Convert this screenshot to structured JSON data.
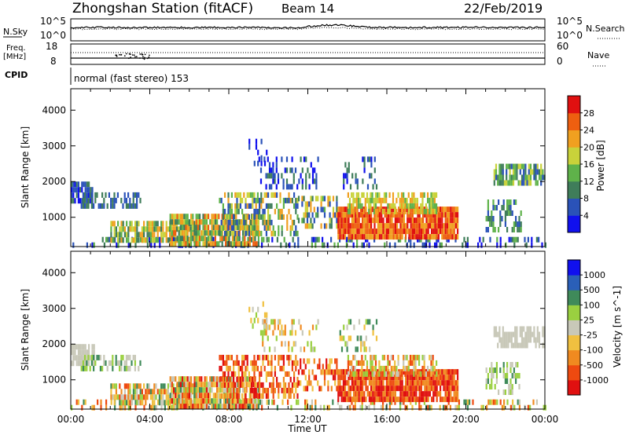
{
  "header": {
    "station": "Zhongshan Station (fitACF)",
    "beam": "Beam 14",
    "date": "22/Feb/2019"
  },
  "strip_labels": {
    "nsky": "N.Sky",
    "nsky_top": "10^5",
    "nsky_bottom": "10^0",
    "nsearch": "N.Search",
    "nsearch_top": "10^5",
    "nsearch_bottom": "10^0",
    "freq_line1": "Freq.",
    "freq_line2": "[MHz]",
    "freq_top": "18",
    "freq_bottom": "8",
    "nave": "Nave",
    "nave_top": "60",
    "nave_bottom": "0",
    "cpid": "CPID",
    "cpid_value": "normal (fast stereo) 153"
  },
  "colors": {
    "power": [
      "#1010ee",
      "#2a52b8",
      "#3f7d5a",
      "#5fb24a",
      "#c9d23a",
      "#f0a020",
      "#ee5f10",
      "#e01010"
    ],
    "velocity": [
      "#e01010",
      "#ee4a10",
      "#f08a20",
      "#f0c040",
      "#c8c8b8",
      "#9ad040",
      "#3f8a5a",
      "#2a5fb8",
      "#1010ee"
    ]
  },
  "chart_data": [
    {
      "type": "heatmap",
      "name": "power",
      "ylabel": "Slant Range [km]",
      "xlabel": "",
      "x_ticks": [],
      "y_ticks": [
        "1000",
        "2000",
        "3000",
        "4000"
      ],
      "xlim": [
        0,
        24
      ],
      "ylim": [
        180,
        4600
      ],
      "colorbar_label": "Power [dB]",
      "colorbar_ticks": [
        "4",
        "8",
        "12",
        "16",
        "20",
        "24",
        "28"
      ],
      "colorbar_range": [
        0,
        32
      ]
    },
    {
      "type": "heatmap",
      "name": "velocity",
      "ylabel": "Slant Range [km]",
      "xlabel": "Time UT",
      "x_ticks": [
        "00:00",
        "04:00",
        "08:00",
        "12:00",
        "16:00",
        "20:00",
        "00:00"
      ],
      "y_ticks": [
        "1000",
        "2000",
        "3000",
        "4000"
      ],
      "xlim": [
        0,
        24
      ],
      "ylim": [
        180,
        4600
      ],
      "colorbar_label": "Velocity [m s^-1]",
      "colorbar_ticks": [
        "-1000",
        "-500",
        "-100",
        "-25",
        "25",
        "100",
        "500",
        "1000"
      ]
    }
  ]
}
